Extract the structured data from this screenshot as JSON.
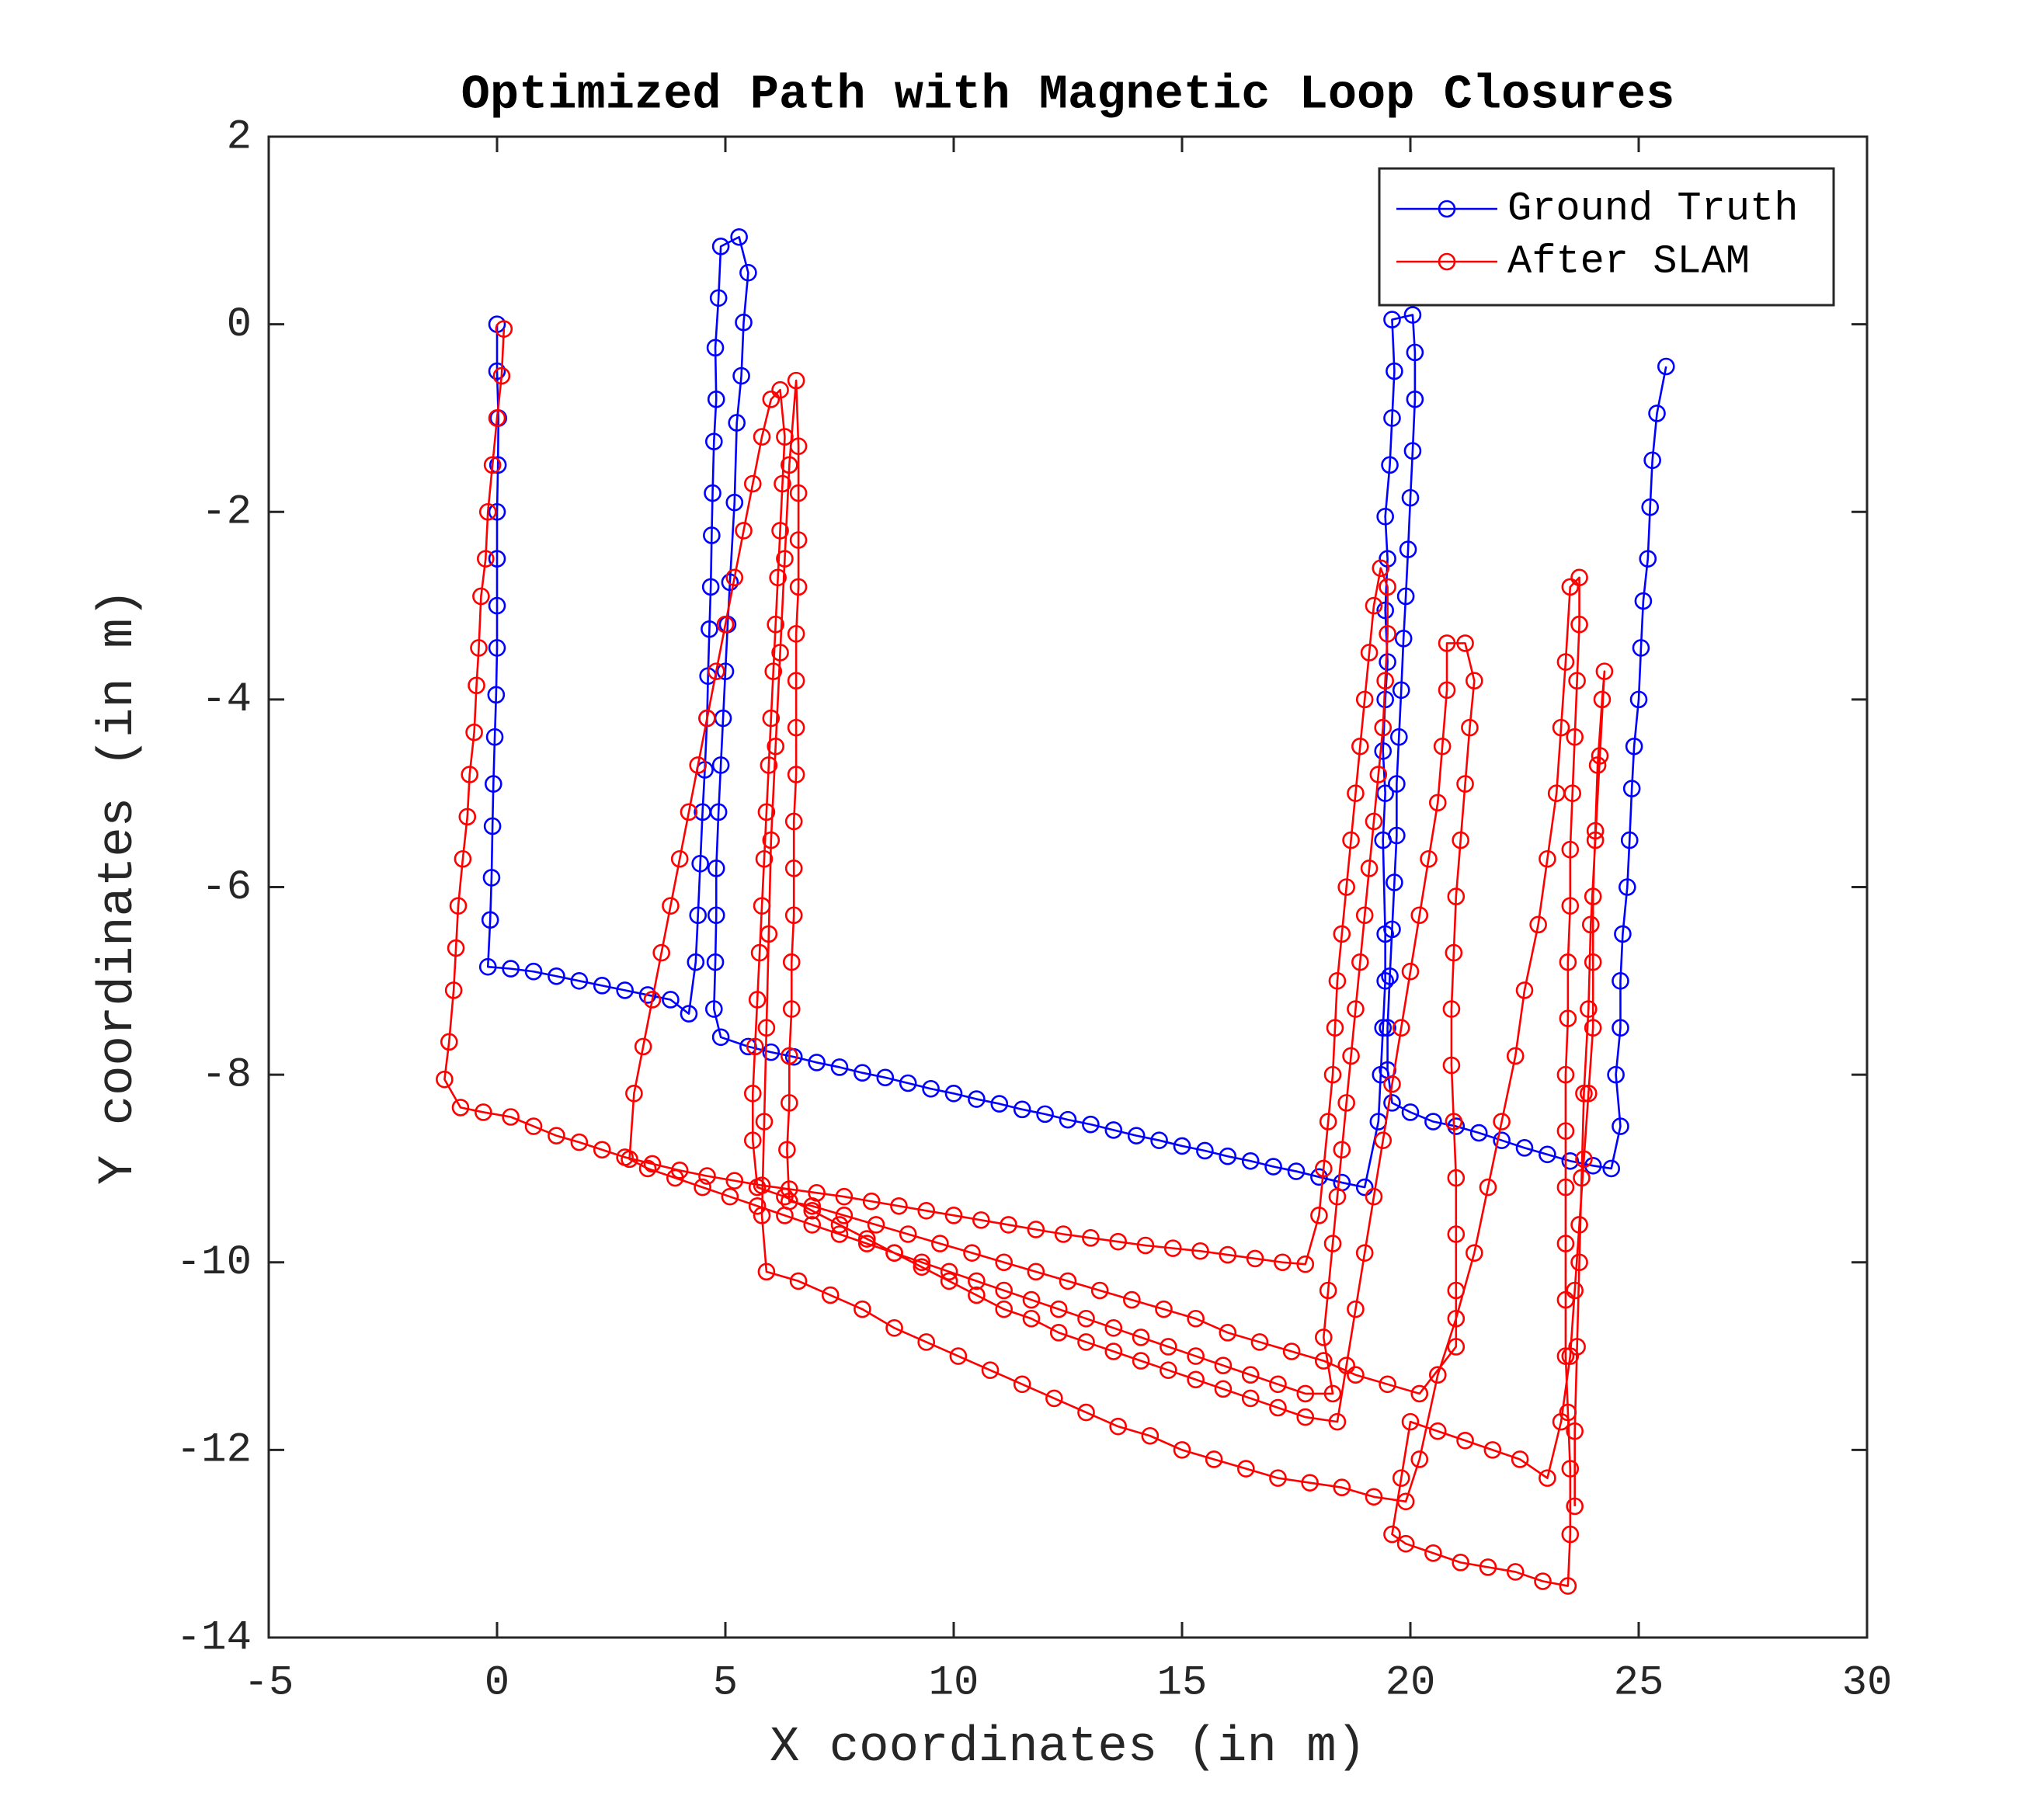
{
  "chart_data": {
    "type": "line",
    "title": "Optimized Path with Magnetic Loop Closures",
    "x_label": "X coordinates (in m)",
    "y_label": "Y coordinates (in m)",
    "xlim": [
      -5,
      30
    ],
    "xticks": [
      -5,
      0,
      5,
      10,
      15,
      20,
      25,
      30
    ],
    "ylim": [
      -14,
      2
    ],
    "yticks": [
      -14,
      -12,
      -10,
      -8,
      -6,
      -4,
      -2,
      0,
      2
    ],
    "grid": false,
    "legend": "upper right",
    "marker": "circle",
    "series": [
      {
        "name": "Ground Truth",
        "color": "#0000ff",
        "x": [
          0,
          0,
          0.03,
          0.02,
          0,
          0,
          0,
          0,
          -0.02,
          -0.05,
          -0.08,
          -0.1,
          -0.12,
          -0.15,
          -0.2,
          0.3,
          0.8,
          1.3,
          1.8,
          2.3,
          2.8,
          3.3,
          3.8,
          4.2,
          4.35,
          4.4,
          4.45,
          4.5,
          4.55,
          4.6,
          4.62,
          4.65,
          4.68,
          4.7,
          4.72,
          4.75,
          4.8,
          4.78,
          4.85,
          4.9,
          5.3,
          5.5,
          5.4,
          5.35,
          5.25,
          5.2,
          5.1,
          5.05,
          5,
          4.95,
          4.9,
          4.85,
          4.8,
          4.8,
          4.78,
          4.75,
          4.9,
          5.5,
          6,
          6.5,
          7,
          7.5,
          8,
          8.5,
          9,
          9.5,
          10,
          10.5,
          11,
          11.5,
          12,
          12.5,
          13,
          13.5,
          14,
          14.5,
          15,
          15.5,
          16,
          16.5,
          17,
          17.5,
          18,
          18.5,
          19,
          19.3,
          19.35,
          19.4,
          19.45,
          19.45,
          19.4,
          19.45,
          19.4,
          19.45,
          19.5,
          19.45,
          19.5,
          19.45,
          19.55,
          19.6,
          19.65,
          19.6,
          20.05,
          20.1,
          20.1,
          20.05,
          20,
          19.95,
          19.9,
          19.85,
          19.8,
          19.75,
          19.7,
          19.7,
          19.65,
          19.6,
          19.55,
          19.5,
          19.5,
          19.6,
          20,
          20.5,
          21,
          21.5,
          22,
          22.5,
          23,
          23.5,
          24,
          24.4,
          24.6,
          24.5,
          24.6,
          24.6,
          24.65,
          24.75,
          24.8,
          24.85,
          24.9,
          25,
          25.05,
          25.1,
          25.2,
          25.25,
          25.3,
          25.4,
          25.6
        ],
        "values": [
          0,
          -0.5,
          -1,
          -1.5,
          -2,
          -2.5,
          -3,
          -3.45,
          -3.95,
          -4.4,
          -4.9,
          -5.35,
          -5.9,
          -6.35,
          -6.85,
          -6.87,
          -6.9,
          -6.95,
          -7,
          -7.05,
          -7.1,
          -7.15,
          -7.2,
          -7.35,
          -6.8,
          -6.3,
          -5.75,
          -5.2,
          -4.75,
          -4.2,
          -3.75,
          -3.25,
          -2.8,
          -2.25,
          -1.8,
          -1.25,
          -0.8,
          -0.25,
          0.28,
          0.83,
          0.93,
          0.55,
          0.02,
          -0.55,
          -1.05,
          -1.9,
          -2.75,
          -3.2,
          -3.7,
          -4.2,
          -4.7,
          -5.2,
          -5.8,
          -6.3,
          -6.8,
          -7.3,
          -7.6,
          -7.7,
          -7.76,
          -7.81,
          -7.87,
          -7.92,
          -7.98,
          -8.03,
          -8.09,
          -8.15,
          -8.2,
          -8.26,
          -8.31,
          -8.37,
          -8.42,
          -8.48,
          -8.53,
          -8.59,
          -8.65,
          -8.7,
          -8.76,
          -8.81,
          -8.87,
          -8.92,
          -8.98,
          -9.03,
          -9.09,
          -9.15,
          -9.2,
          -8.5,
          -8,
          -7.5,
          -7,
          -6.5,
          -5.5,
          -5,
          -4.55,
          -4,
          -3.6,
          -3.05,
          -2.5,
          -2.05,
          -1.5,
          -1,
          -0.5,
          0.05,
          0.1,
          -0.3,
          -0.8,
          -1.35,
          -1.85,
          -2.4,
          -2.9,
          -3.35,
          -3.9,
          -4.4,
          -4.9,
          -5.45,
          -5.95,
          -6.45,
          -6.95,
          -7.5,
          -7.95,
          -8.3,
          -8.4,
          -8.5,
          -8.55,
          -8.62,
          -8.7,
          -8.78,
          -8.85,
          -8.92,
          -8.97,
          -9,
          -8.55,
          -8,
          -7.5,
          -7,
          -6.5,
          -6,
          -5.5,
          -4.95,
          -4.5,
          -4,
          -3.45,
          -2.95,
          -2.5,
          -1.95,
          -1.45,
          -0.95,
          -0.45
        ]
      },
      {
        "name": "After SLAM",
        "color": "#ff0000",
        "x": [
          0.15,
          0.1,
          0,
          -0.1,
          -0.2,
          -0.25,
          -0.35,
          -0.4,
          -0.45,
          -0.5,
          -0.6,
          -0.65,
          -0.75,
          -0.85,
          -0.9,
          -0.95,
          -1.05,
          -1.15,
          -0.8,
          -0.3,
          0.3,
          0.8,
          1.3,
          1.8,
          2.3,
          2.8,
          3.4,
          4,
          4.6,
          5.2,
          5.8,
          6.4,
          7,
          7.6,
          8.2,
          8.8,
          9.4,
          10,
          10.6,
          11.2,
          11.8,
          12.4,
          13,
          13.6,
          14.2,
          14.8,
          15.4,
          16,
          16.6,
          17.2,
          17.7,
          18,
          18.1,
          18.2,
          18.3,
          18.35,
          18.4,
          18.5,
          18.6,
          18.7,
          18.8,
          18.9,
          19,
          19.1,
          19.2,
          19.35,
          19.5,
          19.5,
          19.45,
          19.4,
          19.3,
          19.2,
          19.1,
          19,
          18.9,
          18.8,
          18.7,
          18.6,
          18.5,
          18.4,
          18.3,
          18.2,
          18.1,
          18.3,
          17.7,
          17.1,
          16.5,
          15.9,
          15.3,
          14.7,
          14.1,
          13.5,
          12.9,
          12.3,
          11.7,
          11.1,
          10.5,
          9.9,
          9.3,
          8.7,
          8.1,
          7.5,
          6.9,
          6.3,
          5.7,
          5.1,
          4.5,
          3.9,
          3.3,
          2.9,
          3,
          3.2,
          3.4,
          3.6,
          3.8,
          4,
          4.2,
          4.4,
          4.6,
          4.8,
          5,
          5.2,
          5.4,
          5.6,
          5.8,
          6,
          6.2,
          6.3,
          6.25,
          6.2,
          6.15,
          6.1,
          6.05,
          6,
          5.95,
          5.9,
          5.85,
          5.8,
          5.75,
          5.7,
          5.65,
          5.6,
          5.6,
          5.7,
          6.3,
          6.9,
          7.5,
          8.1,
          8.7,
          9.3,
          9.9,
          10.5,
          11.1,
          11.7,
          12.3,
          12.9,
          13.5,
          14.1,
          14.7,
          15.3,
          15.9,
          16.5,
          17.1,
          17.7,
          18.4,
          18.6,
          18.8,
          19,
          19.2,
          19.4,
          19.6,
          19.8,
          20,
          20.2,
          20.4,
          20.6,
          20.7,
          20.8,
          20.8,
          21.2,
          21.4,
          21.3,
          21.2,
          21.1,
          21,
          20.95,
          20.9,
          20.9,
          20.95,
          21,
          21,
          21,
          21,
          20.2,
          19.5,
          18.8,
          18.1,
          17.4,
          16.7,
          16,
          15.3,
          14.6,
          13.9,
          13.2,
          12.5,
          11.8,
          11.1,
          10.4,
          9.7,
          9,
          8.3,
          7.6,
          6.9,
          6.4,
          6.35,
          6.4,
          6.4,
          6.45,
          6.45,
          6.5,
          6.5,
          6.5,
          6.55,
          6.55,
          6.55,
          6.55,
          6.6,
          6.6,
          6.6,
          6.6,
          6.55,
          6.4,
          6.3,
          6.2,
          6.1,
          6,
          5.95,
          5.9,
          5.85,
          5.8,
          5.9,
          6.6,
          7.3,
          8,
          8.7,
          9.4,
          10.1,
          10.8,
          11.5,
          12.2,
          12.9,
          13.6,
          14.3,
          15,
          15.7,
          16.4,
          17.1,
          17.8,
          18.5,
          19.2,
          19.9,
          20.2,
          20.6,
          21,
          21.4,
          21.7,
          22,
          22.3,
          22.5,
          22.8,
          23,
          23.2,
          23.3,
          23.4,
          23.5,
          23.7,
          23.7,
          23.65,
          23.6,
          23.55,
          23.5,
          23.5,
          23.45,
          23.45,
          23.4,
          23.4,
          23.4,
          23.4,
          23.4,
          23.4,
          23.45,
          23.5,
          23.5,
          23.45,
          22.9,
          22.3,
          21.7,
          21.1,
          20.5,
          19.9,
          19.6,
          19.8,
          20,
          20.6,
          21.2,
          21.8,
          22.4,
          23,
          23.3,
          23.5,
          23.6,
          23.7,
          23.8,
          23.9,
          24,
          24,
          24,
          24.05,
          24.1,
          24.2,
          24.25,
          24.15,
          24.05,
          23.95,
          23.9,
          23.8,
          23.75,
          23.7,
          23.65,
          23.6,
          23.6
        ],
        "values": [
          -0.05,
          -0.55,
          -1,
          -1.5,
          -2,
          -2.5,
          -2.9,
          -3.45,
          -3.85,
          -4.35,
          -4.8,
          -5.25,
          -5.7,
          -6.2,
          -6.65,
          -7.1,
          -7.65,
          -8.05,
          -8.35,
          -8.4,
          -8.45,
          -8.55,
          -8.65,
          -8.72,
          -8.8,
          -8.88,
          -8.95,
          -9.02,
          -9.08,
          -9.13,
          -9.18,
          -9.22,
          -9.26,
          -9.3,
          -9.35,
          -9.4,
          -9.45,
          -9.5,
          -9.55,
          -9.6,
          -9.65,
          -9.7,
          -9.74,
          -9.78,
          -9.82,
          -9.85,
          -9.88,
          -9.92,
          -9.96,
          -10,
          -10.02,
          -9.5,
          -9,
          -8.5,
          -8,
          -7.5,
          -7,
          -6.5,
          -6,
          -5.5,
          -5,
          -4.5,
          -4,
          -3.5,
          -3,
          -2.6,
          -2.8,
          -3.3,
          -3.8,
          -4.3,
          -4.8,
          -5.3,
          -5.8,
          -6.3,
          -6.8,
          -7.3,
          -7.8,
          -8.3,
          -8.8,
          -9.3,
          -9.8,
          -10.3,
          -10.8,
          -11.4,
          -11.4,
          -11.3,
          -11.2,
          -11.1,
          -11,
          -10.9,
          -10.8,
          -10.7,
          -10.6,
          -10.5,
          -10.4,
          -10.3,
          -10.2,
          -10.1,
          -10,
          -9.9,
          -9.8,
          -9.7,
          -9.6,
          -9.5,
          -9.4,
          -9.3,
          -9.2,
          -9.1,
          -9,
          -8.9,
          -8.2,
          -7.7,
          -7.2,
          -6.7,
          -6.2,
          -5.7,
          -5.2,
          -4.7,
          -4.2,
          -3.7,
          -3.2,
          -2.7,
          -2.2,
          -1.7,
          -1.2,
          -0.8,
          -0.7,
          -1.2,
          -1.7,
          -2.2,
          -2.7,
          -3.2,
          -3.7,
          -4.2,
          -4.7,
          -5.2,
          -5.7,
          -6.2,
          -6.7,
          -7.2,
          -7.7,
          -8.2,
          -8.7,
          -9.2,
          -9.3,
          -9.45,
          -9.6,
          -9.75,
          -9.9,
          -10.05,
          -10.2,
          -10.35,
          -10.5,
          -10.6,
          -10.75,
          -10.85,
          -10.95,
          -11.05,
          -11.15,
          -11.25,
          -11.35,
          -11.45,
          -11.55,
          -11.65,
          -11.7,
          -11.1,
          -10.5,
          -9.9,
          -9.3,
          -8.7,
          -8.1,
          -7.5,
          -6.9,
          -6.3,
          -5.7,
          -5.1,
          -4.5,
          -3.9,
          -3.4,
          -3.4,
          -3.8,
          -4.3,
          -4.9,
          -5.5,
          -6.1,
          -6.7,
          -7.3,
          -7.9,
          -8.5,
          -9.1,
          -9.7,
          -10.3,
          -10.9,
          -11.4,
          -11.3,
          -11.2,
          -11.05,
          -10.95,
          -10.85,
          -10.75,
          -10.6,
          -10.5,
          -10.4,
          -10.3,
          -10.2,
          -10.1,
          -10,
          -9.9,
          -9.8,
          -9.7,
          -9.6,
          -9.5,
          -9.4,
          -9.35,
          -8.8,
          -8.3,
          -7.8,
          -7.3,
          -6.8,
          -6.3,
          -5.8,
          -5.3,
          -4.8,
          -4.3,
          -3.8,
          -3.3,
          -2.8,
          -2.3,
          -1.8,
          -1.3,
          -0.6,
          -1.5,
          -2.5,
          -3.5,
          -4.5,
          -5.5,
          -6.5,
          -7.5,
          -8.5,
          -9.5,
          -10.1,
          -10.2,
          -10.35,
          -10.5,
          -10.7,
          -10.85,
          -11,
          -11.15,
          -11.3,
          -11.45,
          -11.6,
          -11.75,
          -11.85,
          -12,
          -12.1,
          -12.2,
          -12.3,
          -12.35,
          -12.4,
          -12.5,
          -12.55,
          -12.1,
          -11.2,
          -10.6,
          -9.9,
          -9.2,
          -8.5,
          -7.8,
          -7.1,
          -6.4,
          -5.7,
          -5,
          -4.3,
          -3.6,
          -2.8,
          -2.7,
          -3.2,
          -3.8,
          -4.4,
          -5,
          -5.6,
          -6.2,
          -6.8,
          -7.4,
          -8,
          -8.6,
          -9.2,
          -9.8,
          -10.4,
          -11,
          -11.6,
          -12.2,
          -12.9,
          -13.45,
          -13.4,
          -13.3,
          -13.25,
          -13.2,
          -13.1,
          -13,
          -12.9,
          -12.3,
          -11.7,
          -11.8,
          -11.9,
          -12,
          -12.1,
          -12.3,
          -11.7,
          -11,
          -10.3,
          -9.6,
          -8.9,
          -8.2,
          -7.5,
          -6.8,
          -6.1,
          -5.4,
          -4.7,
          -4,
          -3.7,
          -4.6,
          -5.5,
          -6.4,
          -7.3,
          -8.2,
          -9.1,
          -10,
          -10.9,
          -11.8,
          -12.6
        ]
      }
    ]
  }
}
